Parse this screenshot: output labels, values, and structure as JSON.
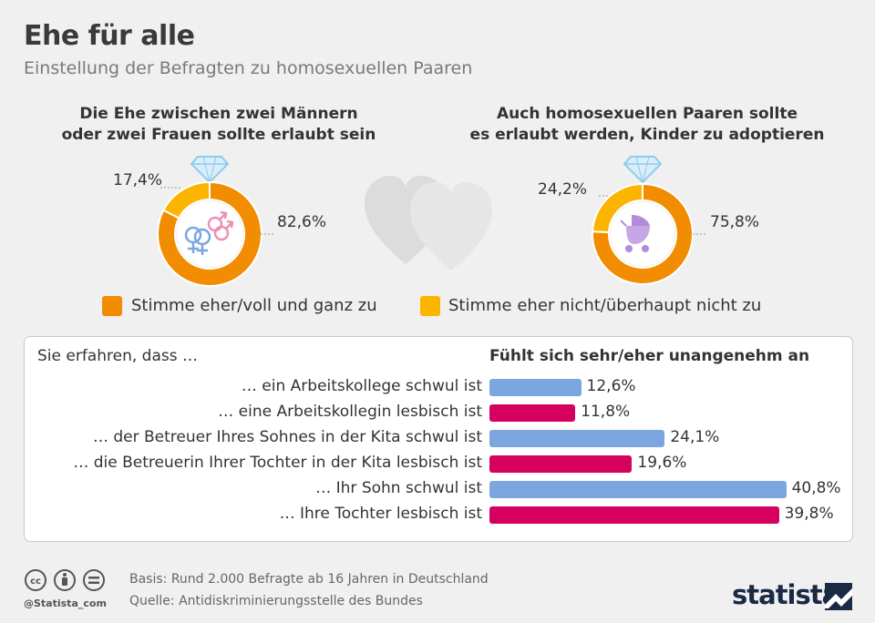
{
  "title": "Ehe für alle",
  "subtitle": "Einstellung der Befragten zu homosexuellen Paaren",
  "colors": {
    "agree": "#f28c00",
    "disagree": "#fbb400",
    "male": "#7ba6e0",
    "female": "#d6005e"
  },
  "chart_data": [
    {
      "type": "pie",
      "title_line1": "Die Ehe zwischen zwei Männern",
      "title_line2": "oder zwei Frauen sollte erlaubt sein",
      "slices": [
        {
          "name": "Stimme eher/voll und ganz zu",
          "value": 82.6,
          "label": "82,6%"
        },
        {
          "name": "Stimme eher nicht/überhaupt nicht zu",
          "value": 17.4,
          "label": "17,4%"
        }
      ]
    },
    {
      "type": "pie",
      "title_line1": "Auch homosexuellen Paaren sollte",
      "title_line2": "es erlaubt werden, Kinder zu adoptieren",
      "slices": [
        {
          "name": "Stimme eher/voll und ganz zu",
          "value": 75.8,
          "label": "75,8%"
        },
        {
          "name": "Stimme eher nicht/überhaupt nicht zu",
          "value": 24.2,
          "label": "24,2%"
        }
      ]
    },
    {
      "type": "bar",
      "orientation": "horizontal",
      "left_header": "Sie erfahren, dass …",
      "right_header": "Fühlt sich sehr/eher unangenehm an",
      "categories": [
        "… ein Arbeitskollege schwul ist",
        "… eine Arbeitskollegin lesbisch ist",
        "… der Betreuer Ihres Sohnes in der Kita schwul ist",
        "… die Betreuerin Ihrer Tochter in der Kita lesbisch ist",
        "… Ihr Sohn schwul ist",
        "… Ihre Tochter lesbisch ist"
      ],
      "values": [
        12.6,
        11.8,
        24.1,
        19.6,
        40.8,
        39.8
      ],
      "value_labels": [
        "12,6%",
        "11,8%",
        "24,1%",
        "19,6%",
        "40,8%",
        "39,8%"
      ],
      "bar_colors": [
        "male",
        "female",
        "male",
        "female",
        "male",
        "female"
      ]
    }
  ],
  "legend": {
    "agree": "Stimme eher/voll und ganz zu",
    "disagree": "Stimme eher nicht/überhaupt nicht zu"
  },
  "icons": [
    "diamond-ring-icon",
    "gender-symbols-icon",
    "hearts-icon",
    "baby-carriage-icon",
    "cc-icon",
    "attribution-icon",
    "no-derivatives-icon",
    "statista-logo-icon"
  ],
  "footer": {
    "handle": "@Statista_com",
    "basis": "Basis: Rund 2.000 Befragte ab 16 Jahren in Deutschland",
    "source": "Quelle: Antidiskriminierungsstelle des Bundes",
    "brand": "statista"
  }
}
